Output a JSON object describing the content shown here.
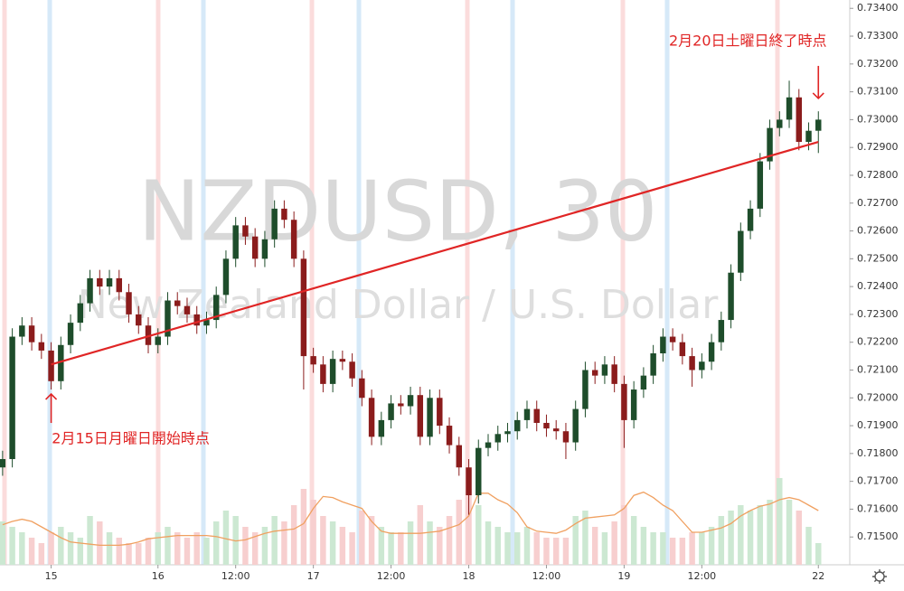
{
  "chart_data": {
    "type": "candlestick",
    "title": "NZDUSD, 30",
    "subtitle": "New Zealand Dollar / U.S. Dollar",
    "x": [
      0,
      3,
      6,
      9,
      12,
      15,
      18,
      21,
      24,
      27,
      30,
      33,
      36,
      39,
      42,
      45,
      48,
      51,
      54,
      57,
      60,
      63,
      66,
      69,
      72,
      75,
      78,
      81,
      84,
      87,
      90,
      93,
      96,
      99,
      102,
      105,
      108,
      111,
      114,
      117,
      120,
      123,
      126,
      129,
      132,
      135,
      138,
      141,
      144,
      147,
      150,
      153,
      156,
      159,
      162,
      165,
      168,
      171,
      174,
      177,
      180,
      183,
      186,
      189,
      192,
      195,
      198,
      201,
      204,
      207,
      210,
      213,
      216,
      219,
      222,
      225,
      228,
      231,
      234,
      237,
      240,
      243,
      246,
      249,
      252
    ],
    "open": [
      0.7175,
      0.7178,
      0.7222,
      0.7226,
      0.722,
      0.7217,
      0.7206,
      0.7219,
      0.7227,
      0.7234,
      0.7243,
      0.724,
      0.7243,
      0.7238,
      0.723,
      0.7226,
      0.7219,
      0.7222,
      0.7235,
      0.7233,
      0.723,
      0.7226,
      0.7228,
      0.7237,
      0.725,
      0.7262,
      0.7258,
      0.725,
      0.7257,
      0.7268,
      0.7264,
      0.725,
      0.7215,
      0.7212,
      0.7205,
      0.7214,
      0.7213,
      0.7207,
      0.72,
      0.7186,
      0.7192,
      0.7198,
      0.7197,
      0.7201,
      0.7186,
      0.72,
      0.719,
      0.7183,
      0.7175,
      0.7165,
      0.7182,
      0.7184,
      0.7187,
      0.7188,
      0.7192,
      0.7196,
      0.7191,
      0.7189,
      0.7188,
      0.7184,
      0.7196,
      0.721,
      0.7208,
      0.7212,
      0.7205,
      0.7192,
      0.7203,
      0.7208,
      0.7216,
      0.7222,
      0.722,
      0.7215,
      0.721,
      0.7213,
      0.722,
      0.7228,
      0.7245,
      0.726,
      0.7268,
      0.7285,
      0.7297,
      0.73,
      0.7308,
      0.7292,
      0.7296
    ],
    "high": [
      0.7181,
      0.7225,
      0.7229,
      0.7229,
      0.7223,
      0.722,
      0.7222,
      0.723,
      0.7237,
      0.7246,
      0.7246,
      0.7246,
      0.7246,
      0.7241,
      0.7233,
      0.7229,
      0.7225,
      0.7238,
      0.7238,
      0.7236,
      0.7233,
      0.7231,
      0.724,
      0.7253,
      0.7265,
      0.7265,
      0.7261,
      0.726,
      0.7271,
      0.7271,
      0.7267,
      0.7253,
      0.7218,
      0.7215,
      0.7217,
      0.7217,
      0.7216,
      0.721,
      0.7203,
      0.7195,
      0.7201,
      0.7201,
      0.7204,
      0.7204,
      0.7203,
      0.7203,
      0.7193,
      0.7186,
      0.7178,
      0.7185,
      0.7187,
      0.719,
      0.7191,
      0.7195,
      0.7199,
      0.7199,
      0.7194,
      0.7192,
      0.7191,
      0.7199,
      0.7213,
      0.7213,
      0.7215,
      0.7215,
      0.7208,
      0.7206,
      0.7211,
      0.7219,
      0.7225,
      0.7225,
      0.7223,
      0.7218,
      0.7216,
      0.7223,
      0.7231,
      0.7248,
      0.7263,
      0.7271,
      0.7288,
      0.73,
      0.7303,
      0.7314,
      0.7311,
      0.7299,
      0.7303
    ],
    "low": [
      0.7172,
      0.7175,
      0.7219,
      0.7217,
      0.7214,
      0.7203,
      0.7203,
      0.7216,
      0.7224,
      0.7231,
      0.7237,
      0.7237,
      0.7235,
      0.7227,
      0.7223,
      0.7216,
      0.7216,
      0.7219,
      0.723,
      0.7227,
      0.7223,
      0.7223,
      0.7225,
      0.7234,
      0.7247,
      0.7255,
      0.7247,
      0.7247,
      0.7254,
      0.7261,
      0.7247,
      0.7203,
      0.7209,
      0.7202,
      0.7202,
      0.721,
      0.7204,
      0.7197,
      0.7183,
      0.7183,
      0.7189,
      0.7194,
      0.7194,
      0.7183,
      0.7183,
      0.7187,
      0.718,
      0.7172,
      0.7158,
      0.7162,
      0.7179,
      0.7181,
      0.7184,
      0.7185,
      0.7189,
      0.7188,
      0.7186,
      0.7185,
      0.7178,
      0.7181,
      0.7193,
      0.7205,
      0.7205,
      0.7202,
      0.7182,
      0.7189,
      0.72,
      0.7205,
      0.7213,
      0.7217,
      0.7212,
      0.7204,
      0.7207,
      0.721,
      0.7217,
      0.7225,
      0.7242,
      0.7257,
      0.7265,
      0.7282,
      0.7294,
      0.7297,
      0.7289,
      0.7289,
      0.7288
    ],
    "close": [
      0.7178,
      0.7222,
      0.7226,
      0.722,
      0.7217,
      0.7206,
      0.7219,
      0.7227,
      0.7234,
      0.7243,
      0.724,
      0.7243,
      0.7238,
      0.723,
      0.7226,
      0.7219,
      0.7222,
      0.7235,
      0.7233,
      0.723,
      0.7226,
      0.7228,
      0.7237,
      0.725,
      0.7262,
      0.7258,
      0.725,
      0.7257,
      0.7268,
      0.7264,
      0.725,
      0.7215,
      0.7212,
      0.7205,
      0.7214,
      0.7213,
      0.7207,
      0.72,
      0.7186,
      0.7192,
      0.7198,
      0.7197,
      0.7201,
      0.7186,
      0.72,
      0.719,
      0.7183,
      0.7175,
      0.7165,
      0.7182,
      0.7184,
      0.7187,
      0.7188,
      0.7192,
      0.7196,
      0.7191,
      0.7189,
      0.7188,
      0.7184,
      0.7196,
      0.721,
      0.7208,
      0.7212,
      0.7205,
      0.7192,
      0.7203,
      0.7208,
      0.7216,
      0.7222,
      0.722,
      0.7215,
      0.721,
      0.7213,
      0.722,
      0.7228,
      0.7245,
      0.726,
      0.7268,
      0.7285,
      0.7297,
      0.73,
      0.7308,
      0.7292,
      0.7296,
      0.73
    ],
    "up_color": "#1e4d2b",
    "down_color": "#8b1c1c",
    "volume": {
      "values": [
        40,
        35,
        30,
        25,
        20,
        30,
        35,
        30,
        25,
        45,
        40,
        30,
        25,
        20,
        20,
        25,
        30,
        35,
        30,
        25,
        30,
        25,
        40,
        50,
        45,
        35,
        30,
        35,
        45,
        40,
        55,
        70,
        60,
        45,
        40,
        35,
        30,
        50,
        45,
        35,
        30,
        30,
        40,
        55,
        40,
        35,
        45,
        60,
        70,
        55,
        40,
        35,
        30,
        30,
        35,
        30,
        25,
        25,
        25,
        45,
        50,
        35,
        30,
        40,
        55,
        45,
        35,
        30,
        30,
        25,
        25,
        30,
        30,
        35,
        45,
        50,
        55,
        50,
        55,
        60,
        80,
        60,
        50,
        35,
        20
      ],
      "up_color": "#cce8d2",
      "down_color": "#f7cfcf"
    },
    "volume_ma": {
      "values": [
        37,
        40,
        42,
        40,
        35,
        30,
        25,
        21,
        20,
        19,
        18,
        18,
        18,
        19,
        21,
        24,
        25,
        26,
        27,
        27,
        27,
        27,
        26,
        24,
        22,
        23,
        26,
        29,
        31,
        32,
        33,
        38,
        52,
        63,
        62,
        58,
        55,
        52,
        40,
        31,
        29,
        29,
        29,
        29,
        30,
        31,
        34,
        37,
        45,
        66,
        66,
        60,
        56,
        48,
        35,
        31,
        30,
        29,
        32,
        38,
        43,
        44,
        45,
        46,
        52,
        64,
        67,
        62,
        55,
        50,
        40,
        30,
        30,
        32,
        34,
        38,
        45,
        50,
        54,
        56,
        60,
        62,
        60,
        55,
        50
      ],
      "color": "#f0a060"
    },
    "trendline": {
      "x": [
        15,
        252
      ],
      "y": [
        0.7212,
        0.7292
      ],
      "color": "#e02525"
    },
    "annotations": [
      {
        "text": "2月15日月曜日開始時点",
        "point": {
          "x": 15,
          "y": 0.7203
        },
        "color": "#e02525"
      },
      {
        "text": "2月20日土曜日終了時点",
        "point": {
          "x": 252,
          "y": 0.7306
        },
        "color": "#e02525"
      }
    ],
    "xlim": [
      -0.8,
      261.7
    ],
    "ylim": [
      0.714,
      0.7343
    ],
    "xticks": [
      {
        "value": 15,
        "label": "15"
      },
      {
        "value": 48,
        "label": "16"
      },
      {
        "value": 72,
        "label": "12:00"
      },
      {
        "value": 96,
        "label": "17"
      },
      {
        "value": 120,
        "label": "12:00"
      },
      {
        "value": 144,
        "label": "18"
      },
      {
        "value": 168,
        "label": "12:00"
      },
      {
        "value": 192,
        "label": "19"
      },
      {
        "value": 216,
        "label": "12:00"
      },
      {
        "value": 252,
        "label": "22"
      }
    ],
    "yticks": [
      {
        "value": 0.715,
        "label": "0.71500"
      },
      {
        "value": 0.716,
        "label": "0.71600"
      },
      {
        "value": 0.717,
        "label": "0.71700"
      },
      {
        "value": 0.718,
        "label": "0.71800"
      },
      {
        "value": 0.719,
        "label": "0.71900"
      },
      {
        "value": 0.72,
        "label": "0.72000"
      },
      {
        "value": 0.721,
        "label": "0.72100"
      },
      {
        "value": 0.722,
        "label": "0.72200"
      },
      {
        "value": 0.723,
        "label": "0.72300"
      },
      {
        "value": 0.724,
        "label": "0.72400"
      },
      {
        "value": 0.725,
        "label": "0.72500"
      },
      {
        "value": 0.726,
        "label": "0.72600"
      },
      {
        "value": 0.727,
        "label": "0.72700"
      },
      {
        "value": 0.728,
        "label": "0.72800"
      },
      {
        "value": 0.729,
        "label": "0.72900"
      },
      {
        "value": 0.73,
        "label": "0.73000"
      },
      {
        "value": 0.731,
        "label": "0.73100"
      },
      {
        "value": 0.732,
        "label": "0.73200"
      },
      {
        "value": 0.733,
        "label": "0.73300"
      },
      {
        "value": 0.734,
        "label": "0.73400"
      }
    ],
    "grid": false
  }
}
